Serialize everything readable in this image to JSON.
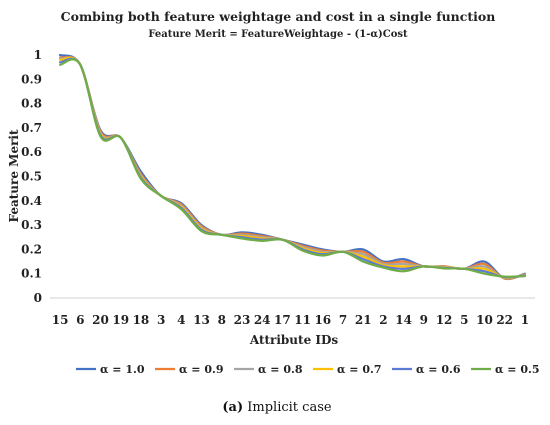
{
  "chart_data": {
    "type": "line",
    "title": "Combing both feature weightage and cost in a single function",
    "subtitle": "Feature Merit = FeatureWeightage - (1-α)Cost",
    "xlabel": "Attribute IDs",
    "ylabel": "Feature Merit",
    "ylim": [
      0,
      1
    ],
    "yticks": [
      "0",
      "0.1",
      "0.2",
      "0.3",
      "0.4",
      "0.5",
      "0.6",
      "0.7",
      "0.8",
      "0.9",
      "1"
    ],
    "categories": [
      "15",
      "6",
      "20",
      "19",
      "18",
      "3",
      "4",
      "13",
      "8",
      "23",
      "24",
      "17",
      "11",
      "16",
      "7",
      "21",
      "2",
      "14",
      "9",
      "12",
      "5",
      "10",
      "22",
      "1"
    ],
    "grid": false,
    "legend_position": "bottom",
    "series": [
      {
        "name": "α = 1.0",
        "color": "#4472C4",
        "values": [
          1.0,
          0.96,
          0.69,
          0.66,
          0.52,
          0.42,
          0.39,
          0.3,
          0.26,
          0.27,
          0.26,
          0.24,
          0.22,
          0.2,
          0.19,
          0.2,
          0.15,
          0.16,
          0.13,
          0.13,
          0.12,
          0.15,
          0.08,
          0.1
        ]
      },
      {
        "name": "α = 0.9",
        "color": "#ED7D31",
        "values": [
          0.99,
          0.96,
          0.685,
          0.66,
          0.51,
          0.42,
          0.385,
          0.295,
          0.26,
          0.265,
          0.255,
          0.24,
          0.215,
          0.195,
          0.19,
          0.19,
          0.145,
          0.15,
          0.13,
          0.13,
          0.12,
          0.14,
          0.08,
          0.098
        ]
      },
      {
        "name": "α = 0.8",
        "color": "#A5A5A5",
        "values": [
          0.985,
          0.96,
          0.68,
          0.66,
          0.505,
          0.42,
          0.38,
          0.29,
          0.26,
          0.26,
          0.25,
          0.24,
          0.21,
          0.19,
          0.19,
          0.18,
          0.14,
          0.14,
          0.13,
          0.128,
          0.12,
          0.13,
          0.082,
          0.096
        ]
      },
      {
        "name": "α = 0.7",
        "color": "#FFC000",
        "values": [
          0.98,
          0.96,
          0.675,
          0.66,
          0.5,
          0.42,
          0.375,
          0.285,
          0.26,
          0.255,
          0.245,
          0.24,
          0.205,
          0.185,
          0.19,
          0.17,
          0.135,
          0.13,
          0.13,
          0.126,
          0.12,
          0.12,
          0.084,
          0.094
        ]
      },
      {
        "name": "α = 0.6",
        "color": "#5B7BD5",
        "values": [
          0.97,
          0.96,
          0.67,
          0.66,
          0.495,
          0.42,
          0.37,
          0.28,
          0.26,
          0.25,
          0.24,
          0.24,
          0.2,
          0.18,
          0.19,
          0.16,
          0.13,
          0.12,
          0.13,
          0.124,
          0.12,
          0.11,
          0.086,
          0.092
        ]
      },
      {
        "name": "α = 0.5",
        "color": "#70AD47",
        "values": [
          0.96,
          0.96,
          0.665,
          0.66,
          0.49,
          0.42,
          0.365,
          0.275,
          0.26,
          0.245,
          0.235,
          0.24,
          0.195,
          0.175,
          0.19,
          0.15,
          0.125,
          0.11,
          0.13,
          0.122,
          0.12,
          0.1,
          0.088,
          0.09
        ]
      }
    ]
  },
  "caption": {
    "label": "(a)",
    "text": " Implicit case"
  }
}
